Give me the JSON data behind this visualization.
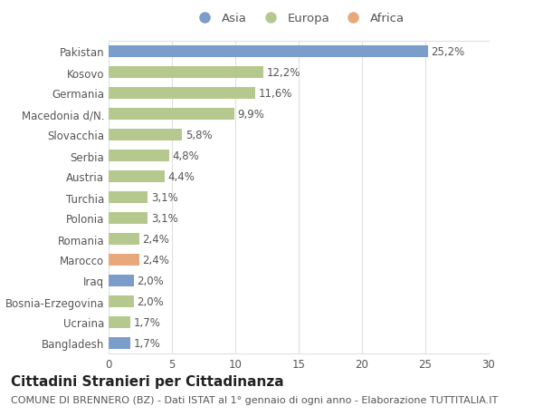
{
  "categories": [
    "Pakistan",
    "Kosovo",
    "Germania",
    "Macedonia d/N.",
    "Slovacchia",
    "Serbia",
    "Austria",
    "Turchia",
    "Polonia",
    "Romania",
    "Marocco",
    "Iraq",
    "Bosnia-Erzegovina",
    "Ucraina",
    "Bangladesh"
  ],
  "values": [
    25.2,
    12.2,
    11.6,
    9.9,
    5.8,
    4.8,
    4.4,
    3.1,
    3.1,
    2.4,
    2.4,
    2.0,
    2.0,
    1.7,
    1.7
  ],
  "labels": [
    "25,2%",
    "12,2%",
    "11,6%",
    "9,9%",
    "5,8%",
    "4,8%",
    "4,4%",
    "3,1%",
    "3,1%",
    "2,4%",
    "2,4%",
    "2,0%",
    "2,0%",
    "1,7%",
    "1,7%"
  ],
  "continents": [
    "Asia",
    "Europa",
    "Europa",
    "Europa",
    "Europa",
    "Europa",
    "Europa",
    "Europa",
    "Europa",
    "Europa",
    "Africa",
    "Asia",
    "Europa",
    "Europa",
    "Asia"
  ],
  "colors": {
    "Asia": "#7b9dc9",
    "Europa": "#b5c98e",
    "Africa": "#e8a87c"
  },
  "legend_order": [
    "Asia",
    "Europa",
    "Africa"
  ],
  "xlim": [
    0,
    30
  ],
  "xticks": [
    0,
    5,
    10,
    15,
    20,
    25,
    30
  ],
  "title": "Cittadini Stranieri per Cittadinanza",
  "subtitle": "COMUNE DI BRENNERO (BZ) - Dati ISTAT al 1° gennaio di ogni anno - Elaborazione TUTTITALIA.IT",
  "fig_bg_color": "#ffffff",
  "plot_bg_color": "#ffffff",
  "bar_height": 0.55,
  "label_fontsize": 8.5,
  "title_fontsize": 11,
  "subtitle_fontsize": 8,
  "legend_fontsize": 9.5,
  "ytick_fontsize": 8.5,
  "xtick_fontsize": 8.5,
  "grid_color": "#e0e0e0",
  "text_color": "#555555",
  "title_color": "#222222"
}
